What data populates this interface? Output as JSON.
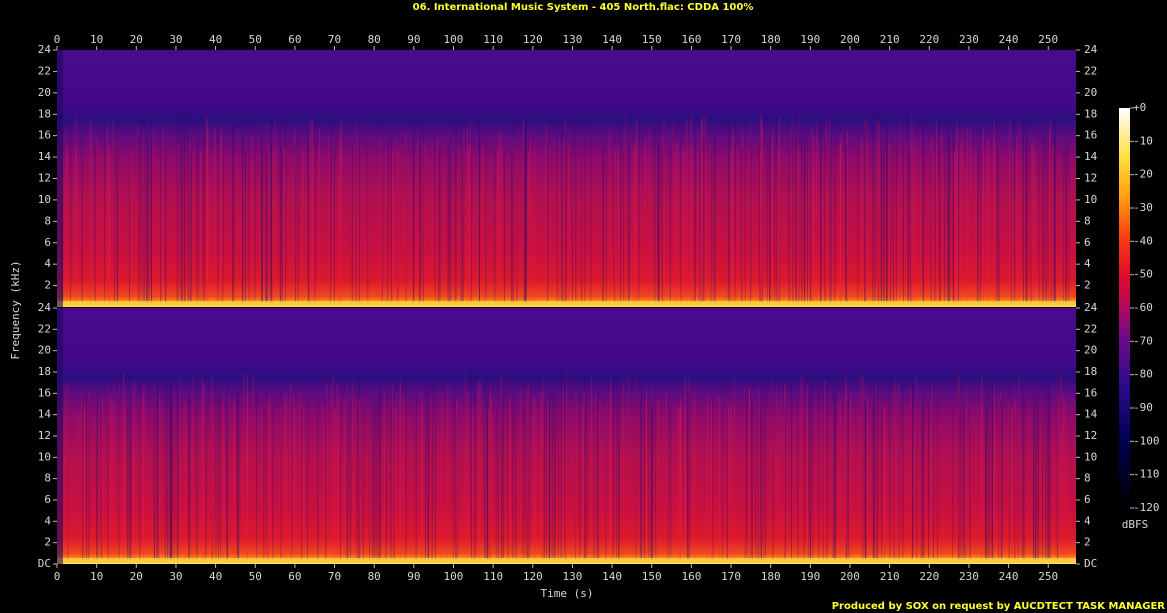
{
  "chart_data": {
    "type": "spectrogram",
    "title": "06. International Music System - 405 North.flac: CDDA 100%",
    "x_label": "Time (s)",
    "y_label": "Frequency (kHz)",
    "xlim": [
      0,
      257
    ],
    "xticks": [
      0,
      10,
      20,
      30,
      40,
      50,
      60,
      70,
      80,
      90,
      100,
      110,
      120,
      130,
      140,
      150,
      160,
      170,
      180,
      190,
      200,
      210,
      220,
      230,
      240,
      250
    ],
    "channels": [
      {
        "ylim": [
          0,
          24
        ],
        "yticks": [
          2,
          4,
          6,
          8,
          10,
          12,
          14,
          16,
          18,
          20,
          22,
          24
        ]
      },
      {
        "ylim": [
          0,
          24
        ],
        "yticks": [
          {
            "value": 0,
            "label": "DC"
          },
          2,
          4,
          6,
          8,
          10,
          12,
          14,
          16,
          18,
          20,
          22,
          24
        ]
      }
    ],
    "colorbar": {
      "label": "dBFS",
      "lim": [
        -120,
        0
      ],
      "ticks": [
        {
          "value": 0,
          "label": "+0"
        },
        -10,
        -20,
        -30,
        -40,
        -50,
        -60,
        -70,
        -80,
        -90,
        -100,
        -110,
        -120
      ]
    },
    "footer": "Produced by SOX on request by AUCDTECT TASK MANAGER"
  }
}
